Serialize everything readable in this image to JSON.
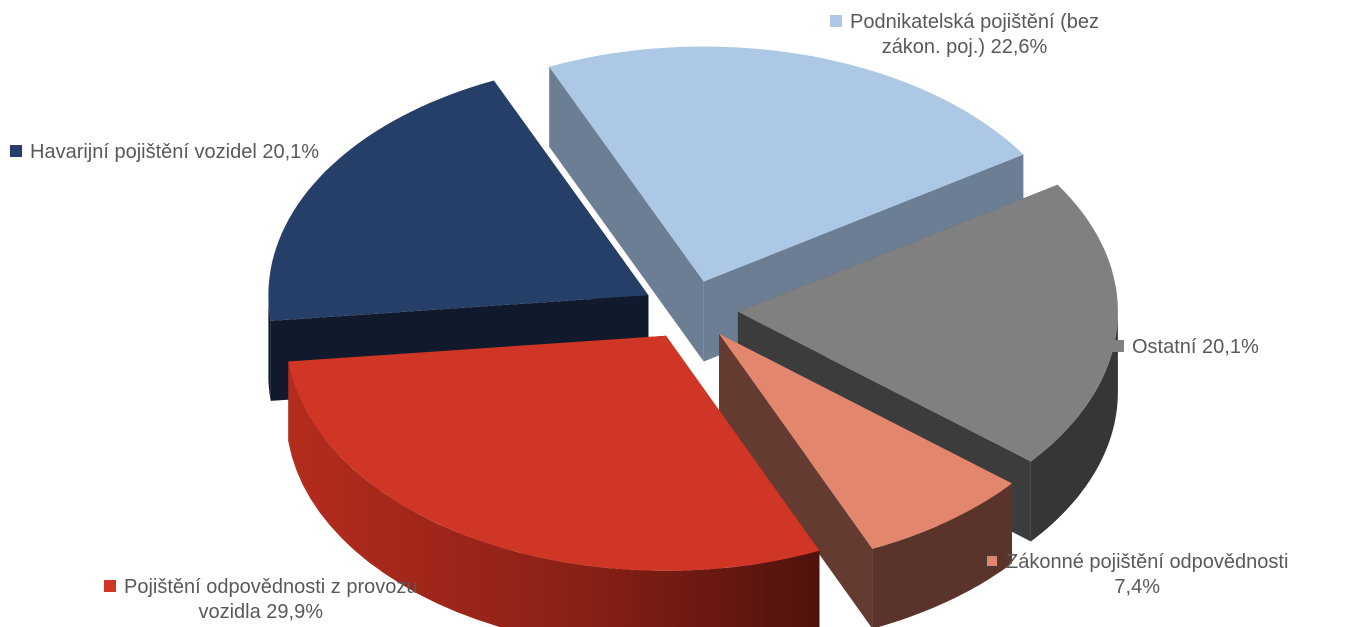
{
  "chart_data": {
    "type": "pie",
    "style": "3d-exploded",
    "slices": [
      {
        "key": "podnikatelska",
        "label_line1": "Podnikatelská pojištění (bez",
        "label_line2": "zákon. poj.) 22,6%",
        "value": 22.6,
        "color": "#adc8e4",
        "side_color": "#6b7e93",
        "outer_color": "#6b7e93"
      },
      {
        "key": "ostatni",
        "label_line1": "Ostatní 20,1%",
        "value": 20.1,
        "color": "#808080",
        "side_color": "#3c3c3c",
        "outer_color": "#363636"
      },
      {
        "key": "zakonne",
        "label_line1": "Zákonné pojištění odpovědnosti",
        "label_line2": "7,4%",
        "value": 7.4,
        "color": "#e2866e",
        "side_color": "#643b30",
        "outer_color": "#5a342a"
      },
      {
        "key": "pojisteni",
        "label_line1": "Pojištění odpovědnosti z provozu",
        "label_line2": "vozidla 29,9%",
        "value": 29.9,
        "color": "#cf3626",
        "side_color": "#7a1c14",
        "outer_color": "#a8281b"
      },
      {
        "key": "havarijni",
        "label_line1": "Havarijní pojištění vozidel 20,1%",
        "value": 20.1,
        "color": "#263f68",
        "side_color": "#101a2c",
        "outer_color": "#101a2c"
      }
    ]
  }
}
